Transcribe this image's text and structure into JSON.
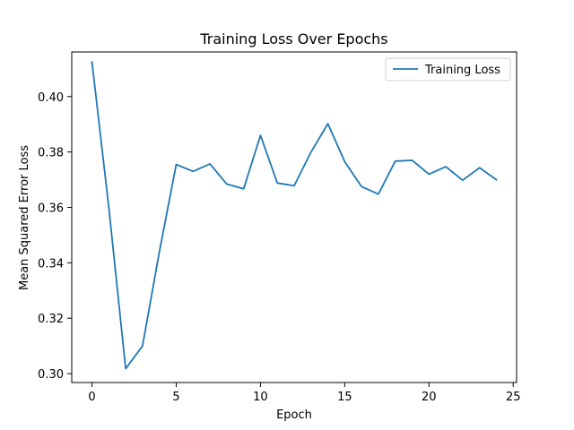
{
  "chart_data": {
    "type": "line",
    "title": "Training Loss Over Epochs",
    "xlabel": "Epoch",
    "ylabel": "Mean Squared Error Loss",
    "xlim": [
      -1.2,
      25.2
    ],
    "ylim": [
      0.2968,
      0.4161
    ],
    "x_ticks": [
      0,
      5,
      10,
      15,
      20,
      25
    ],
    "y_ticks": [
      0.3,
      0.32,
      0.34,
      0.36,
      0.38,
      0.4
    ],
    "x_tick_labels": [
      "0",
      "5",
      "10",
      "15",
      "20",
      "25"
    ],
    "y_tick_labels": [
      "0.30",
      "0.32",
      "0.34",
      "0.36",
      "0.38",
      "0.40"
    ],
    "grid": false,
    "legend_position": "top-right",
    "series": [
      {
        "name": "Training Loss",
        "color": "#1f77b4",
        "x": [
          0,
          1,
          2,
          3,
          4,
          5,
          6,
          7,
          8,
          9,
          10,
          11,
          12,
          13,
          14,
          15,
          16,
          17,
          18,
          19,
          20,
          21,
          22,
          23,
          24
        ],
        "y": [
          0.4125,
          0.36,
          0.3018,
          0.31,
          0.344,
          0.3755,
          0.373,
          0.3757,
          0.3684,
          0.3667,
          0.386,
          0.3688,
          0.3678,
          0.38,
          0.3902,
          0.3765,
          0.3675,
          0.3648,
          0.3767,
          0.377,
          0.372,
          0.3747,
          0.3698,
          0.3743,
          0.37
        ]
      }
    ]
  }
}
